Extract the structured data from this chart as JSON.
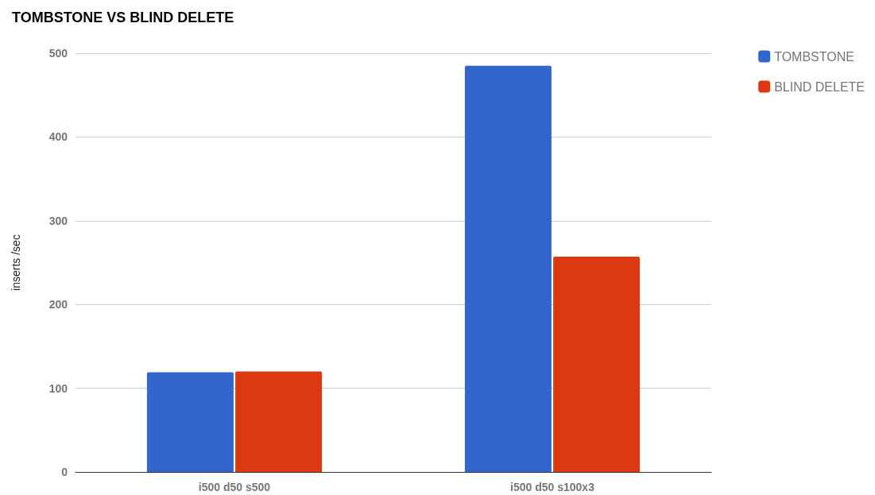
{
  "chart_data": {
    "type": "bar",
    "title": "TOMBSTONE VS BLIND DELETE",
    "ylabel": "inserts /sec",
    "categories": [
      "i500 d50 s500",
      "i500 d50 s100x3"
    ],
    "series": [
      {
        "name": "TOMBSTONE",
        "color": "#3366cc",
        "values": [
          119,
          485
        ]
      },
      {
        "name": "BLIND DELETE",
        "color": "#dc3912",
        "values": [
          120,
          257
        ]
      }
    ],
    "ylim": [
      0,
      500
    ],
    "yticks": [
      0,
      100,
      200,
      300,
      400,
      500
    ],
    "grid": "y",
    "legend": "top right"
  }
}
